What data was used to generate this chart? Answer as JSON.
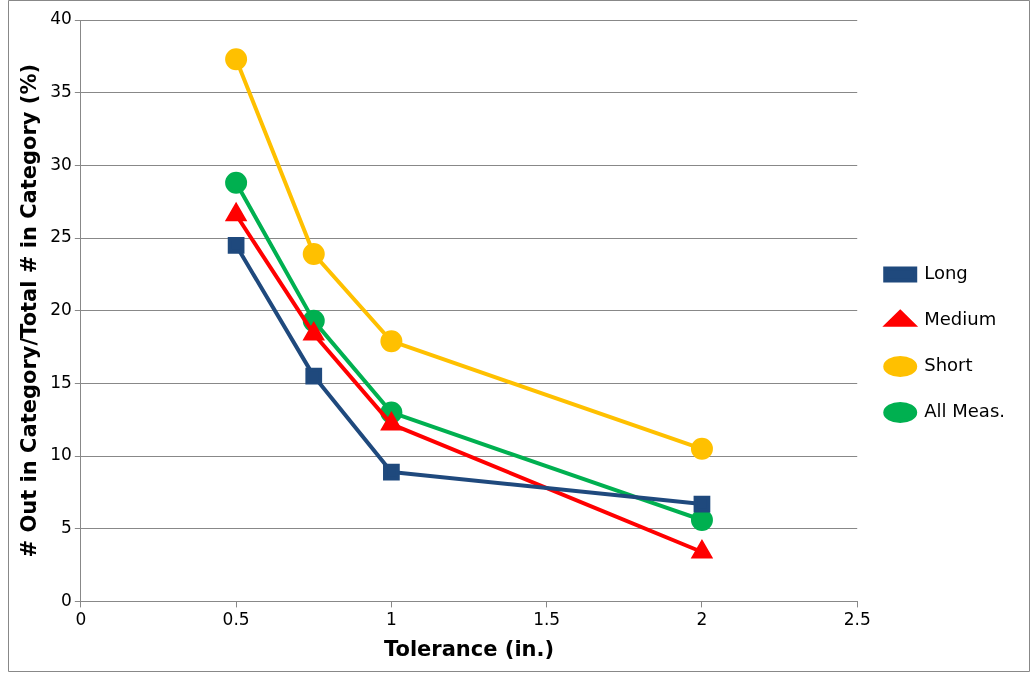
{
  "chart_data": {
    "type": "line",
    "xlabel": "Tolerance (in.)",
    "ylabel": "# Out in Category/Total # in Category (%)",
    "x": [
      0.5,
      0.75,
      1,
      2
    ],
    "series": [
      {
        "name": "Long",
        "color": "#1f497d",
        "marker": "square",
        "values": [
          24.5,
          15.5,
          8.9,
          6.7
        ]
      },
      {
        "name": "Medium",
        "color": "#ff0000",
        "marker": "triangle",
        "values": [
          26.6,
          18.4,
          12.2,
          3.4
        ]
      },
      {
        "name": "Short",
        "color": "#ffc000",
        "marker": "circle",
        "values": [
          37.3,
          23.9,
          17.9,
          10.5
        ]
      },
      {
        "name": "All Meas.",
        "color": "#00b050",
        "marker": "circle",
        "values": [
          28.8,
          19.3,
          13.0,
          5.6
        ]
      }
    ],
    "xlim": [
      0,
      2.5
    ],
    "xticks": [
      0,
      0.5,
      1,
      1.5,
      2,
      2.5
    ],
    "ylim": [
      0,
      40
    ],
    "yticks": [
      0,
      5,
      10,
      15,
      20,
      25,
      30,
      35,
      40
    ],
    "grid": "y",
    "legend": "right",
    "line_style": "solid"
  }
}
